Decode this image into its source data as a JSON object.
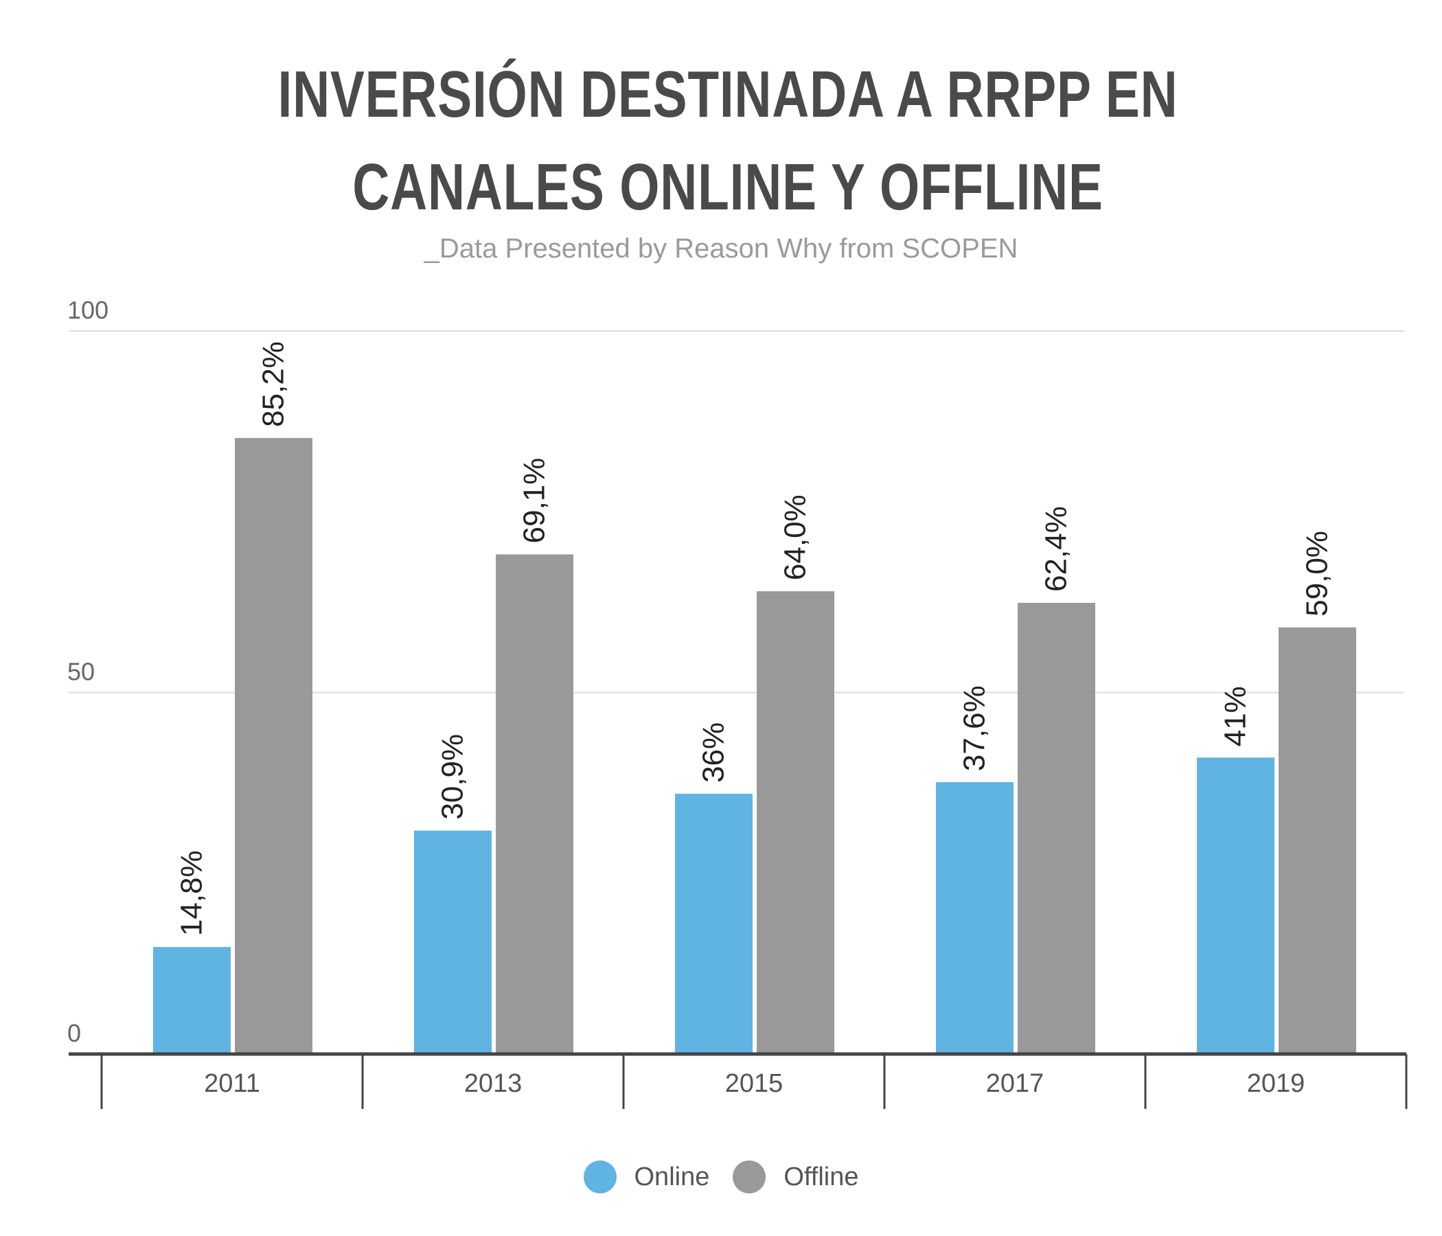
{
  "title": "INVERSIÓN DESTINADA A RRPP EN CANALES ONLINE Y OFFLINE",
  "subtitle": "_Data Presented by Reason Why from SCOPEN",
  "legend": [
    {
      "label": "Online",
      "color": "#5fb4e3"
    },
    {
      "label": "Offline",
      "color": "#999999"
    }
  ],
  "chart_data": {
    "type": "bar",
    "categories": [
      "2011",
      "2013",
      "2015",
      "2017",
      "2019"
    ],
    "series": [
      {
        "name": "Online",
        "values": [
          14.8,
          30.9,
          36,
          37.6,
          41
        ],
        "labels": [
          "14,8%",
          "30,9%",
          "36%",
          "37,6%",
          "41%"
        ],
        "color": "#5fb4e3"
      },
      {
        "name": "Offline",
        "values": [
          85.2,
          69.1,
          64.0,
          62.4,
          59.0
        ],
        "labels": [
          "85,2%",
          "69,1%",
          "64,0%",
          "62,4%",
          "59,0%"
        ],
        "color": "#999999"
      }
    ],
    "yticks": [
      0,
      50,
      100
    ],
    "ylim": [
      0,
      100
    ],
    "grid": true,
    "legend_position": "bottom"
  }
}
